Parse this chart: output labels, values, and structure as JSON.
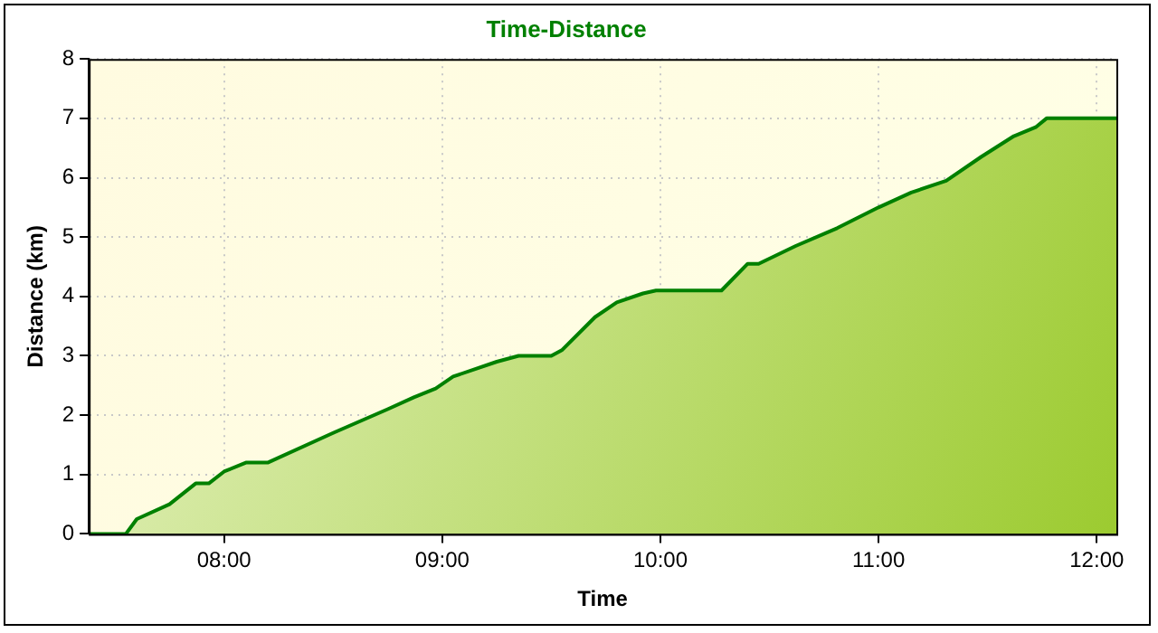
{
  "chart_data": {
    "type": "area",
    "title": "Time-Distance",
    "xlabel": "Time",
    "ylabel": "Distance (km)",
    "xlim": [
      7.38,
      12.09
    ],
    "xticks": [
      {
        "value": 8,
        "label": "08:00"
      },
      {
        "value": 9,
        "label": "09:00"
      },
      {
        "value": 10,
        "label": "10:00"
      },
      {
        "value": 11,
        "label": "11:00"
      },
      {
        "value": 12,
        "label": "12:00"
      }
    ],
    "ylim": [
      0,
      8
    ],
    "yticks": [
      0,
      1,
      2,
      3,
      4,
      5,
      6,
      7,
      8
    ],
    "grid": true,
    "line_style": "solid",
    "marker": "none",
    "series": [
      {
        "color": "#008000",
        "x": [
          7.38,
          7.55,
          7.6,
          7.75,
          7.87,
          7.93,
          8.0,
          8.1,
          8.2,
          8.5,
          8.75,
          8.87,
          8.97,
          9.05,
          9.25,
          9.35,
          9.5,
          9.55,
          9.7,
          9.8,
          9.92,
          9.98,
          10.28,
          10.4,
          10.45,
          10.62,
          10.81,
          11.0,
          11.15,
          11.31,
          11.47,
          11.62,
          11.72,
          11.77,
          12.09
        ],
        "values": [
          0,
          0,
          0.25,
          0.5,
          0.85,
          0.85,
          1.05,
          1.2,
          1.2,
          1.7,
          2.1,
          2.3,
          2.45,
          2.65,
          2.9,
          3.0,
          3.0,
          3.1,
          3.65,
          3.9,
          4.05,
          4.1,
          4.1,
          4.55,
          4.55,
          4.85,
          5.15,
          5.5,
          5.75,
          5.95,
          6.35,
          6.7,
          6.85,
          7.0,
          7.0
        ]
      }
    ]
  }
}
